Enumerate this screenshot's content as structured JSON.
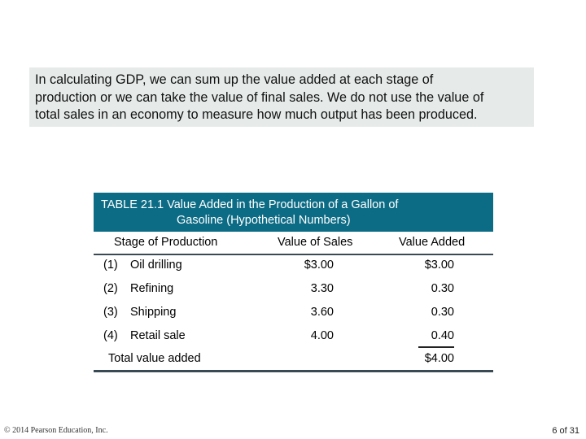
{
  "intro": {
    "lines": [
      "In calculating GDP, we can sum up the value added at each stage of",
      "production or we can take the value of final sales. We do not use the value of",
      "total sales in an economy to measure how much output has been produced."
    ]
  },
  "table": {
    "title_line1": "TABLE 21.1  Value Added in the Production of a Gallon of",
    "title_line2": "Gasoline (Hypothetical Numbers)",
    "columns": [
      "Stage of Production",
      "Value of Sales",
      "Value Added"
    ],
    "rows": [
      {
        "num": "(1)",
        "stage": "Oil drilling",
        "sales": "$3.00",
        "added": "$3.00"
      },
      {
        "num": "(2)",
        "stage": "Refining",
        "sales": "3.30",
        "added": "0.30"
      },
      {
        "num": "(3)",
        "stage": "Shipping",
        "sales": "3.60",
        "added": "0.30"
      },
      {
        "num": "(4)",
        "stage": "Retail sale",
        "sales": "4.00",
        "added": "0.40"
      }
    ],
    "total_label": "Total value added",
    "total_value": "$4.00"
  },
  "footer": {
    "copyright": "© 2014 Pearson Education, Inc.",
    "page": "6 of 31"
  },
  "colors": {
    "header_bg": "#0d6c85",
    "intro_bg": "#e6ebea"
  }
}
